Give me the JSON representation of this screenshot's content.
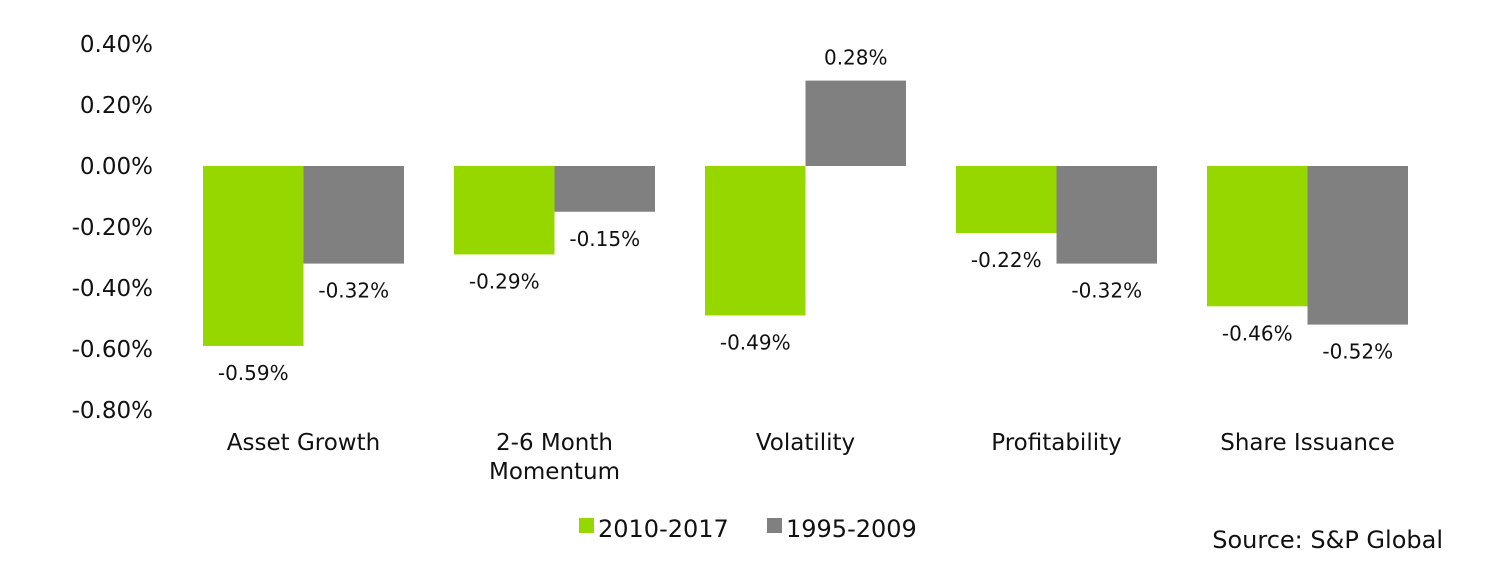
{
  "chart_data": {
    "type": "bar",
    "title": "",
    "xlabel": "",
    "ylabel": "",
    "ylim": [
      -0.8,
      0.4
    ],
    "yticks": [
      0.4,
      0.2,
      0.0,
      -0.2,
      -0.4,
      -0.6,
      -0.8
    ],
    "ytick_labels": [
      "0.40%",
      "0.20%",
      "0.00%",
      "-0.20%",
      "-0.40%",
      "-0.60%",
      "-0.80%"
    ],
    "grid": false,
    "categories": [
      [
        "Asset Growth"
      ],
      [
        "2-6 Month",
        "Momentum"
      ],
      [
        "Volatility"
      ],
      [
        "Profitability"
      ],
      [
        "Share Issuance"
      ]
    ],
    "series": [
      {
        "name": "2010-2017",
        "color": "#97D700",
        "values": [
          -0.59,
          -0.29,
          -0.49,
          -0.22,
          -0.46
        ],
        "labels": [
          "-0.59%",
          "-0.29%",
          "-0.49%",
          "-0.22%",
          "-0.46%"
        ]
      },
      {
        "name": "1995-2009",
        "color": "#808080",
        "values": [
          -0.32,
          -0.15,
          0.28,
          -0.32,
          -0.52
        ],
        "labels": [
          "-0.32%",
          "-0.15%",
          "0.28%",
          "-0.32%",
          "-0.52%"
        ]
      }
    ],
    "legend": {
      "placement": "bottom-center",
      "entries": [
        "2010-2017",
        "1995-2009"
      ]
    },
    "source": "Source: S&P Global"
  }
}
